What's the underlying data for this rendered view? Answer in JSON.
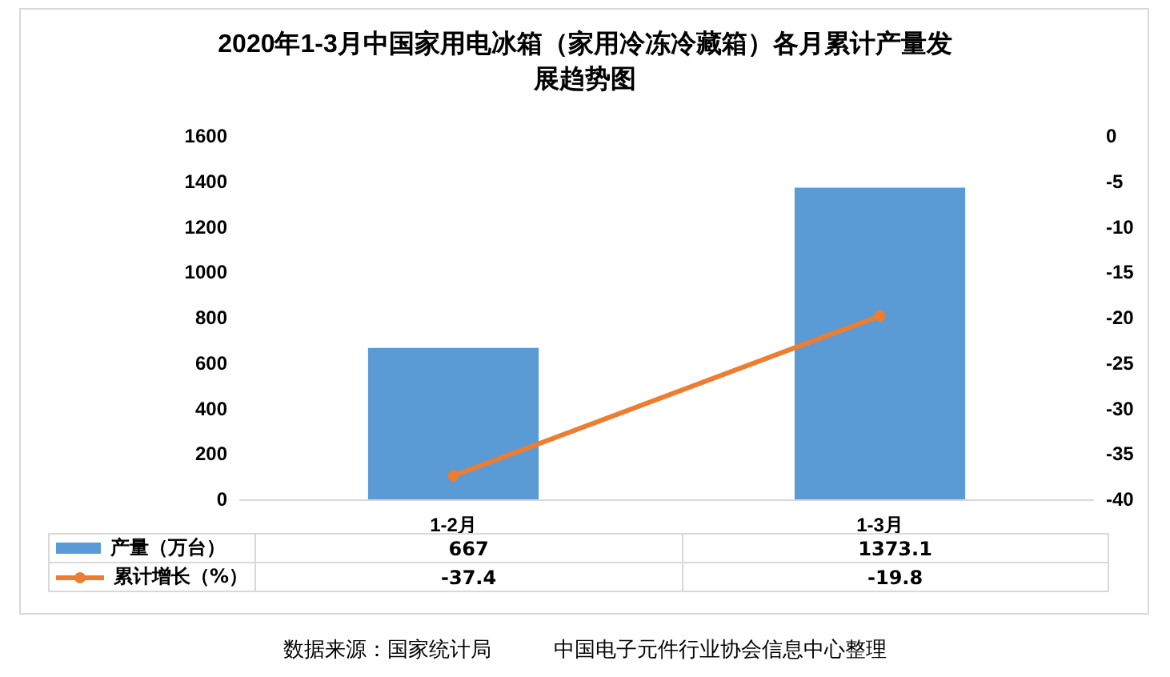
{
  "chart_data": {
    "type": "bar",
    "title": "2020年1-3月中国家用电冰箱（家用冷冻冷藏箱）各月累计产量发展趋势图",
    "categories": [
      "1-2月",
      "1-3月"
    ],
    "series": [
      {
        "name": "产量（万台）",
        "color": "#5b9bd5",
        "values": [
          667,
          1373.1
        ]
      },
      {
        "name": "累计增长（%）",
        "type": "line",
        "axis": "y2",
        "color": "#ed7d31",
        "values": [
          -37.4,
          -19.8
        ]
      }
    ],
    "ylim": [
      0,
      1600
    ],
    "yticks": [
      0,
      200,
      400,
      600,
      800,
      1000,
      1200,
      1400,
      1600
    ],
    "y2lim": [
      -40,
      0
    ],
    "y2ticks": [
      -40,
      -35,
      -30,
      -25,
      -20,
      -15,
      -10,
      -5,
      0
    ],
    "data_labels": true,
    "legend": "bottom",
    "grid": false,
    "marker": "circle",
    "line_style": "solid",
    "annotations": [
      "数据来源：国家统计局　　　中国电子元件行业协会信息中心整理"
    ]
  }
}
